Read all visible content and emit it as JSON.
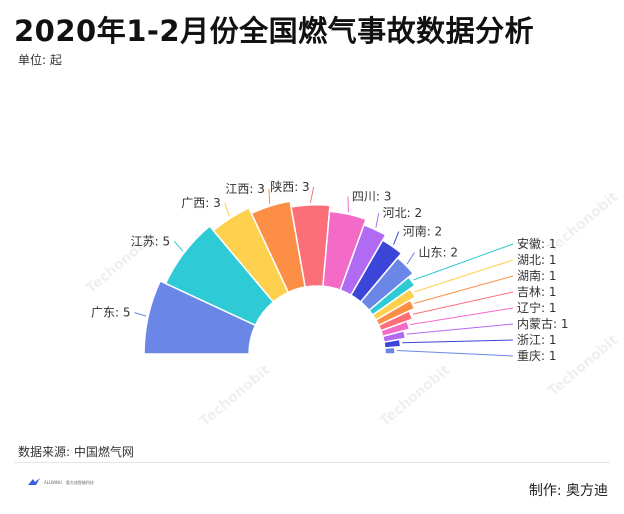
{
  "title": "2020年1-2月份全国燃气事故数据分析",
  "unit": "单位: 起",
  "source": "数据来源: 中国燃气网",
  "maker": "制作:  奥方迪",
  "watermark": "Techonobit",
  "logo": {
    "brand": "ALLWINU",
    "name": "奥方迪智能科技",
    "tagline": "城市智慧能源产业数据运营服务商"
  },
  "colors": {
    "title": "#111111",
    "leader": "#9aa6c8"
  },
  "chart_data": {
    "type": "pie",
    "subtype": "half-donut",
    "label_format": "{name}: {value}",
    "slices": [
      {
        "name": "广东",
        "value": 5,
        "color": "#6A87E8"
      },
      {
        "name": "江苏",
        "value": 5,
        "color": "#2ECAD6"
      },
      {
        "name": "广西",
        "value": 3,
        "color": "#FDD04D"
      },
      {
        "name": "江西",
        "value": 3,
        "color": "#FC8E46"
      },
      {
        "name": "陕西",
        "value": 3,
        "color": "#FC6F78"
      },
      {
        "name": "四川",
        "value": 3,
        "color": "#F46AC7"
      },
      {
        "name": "河北",
        "value": 2,
        "color": "#B16AF2"
      },
      {
        "name": "河南",
        "value": 2,
        "color": "#3B46D9"
      },
      {
        "name": "山东",
        "value": 2,
        "color": "#6A87E8"
      },
      {
        "name": "安徽",
        "value": 1,
        "color": "#2ECAD6"
      },
      {
        "name": "湖北",
        "value": 1,
        "color": "#FDD04D"
      },
      {
        "name": "湖南",
        "value": 1,
        "color": "#FC8E46"
      },
      {
        "name": "吉林",
        "value": 1,
        "color": "#FC6F78"
      },
      {
        "name": "辽宁",
        "value": 1,
        "color": "#F46AC7"
      },
      {
        "name": "内蒙古",
        "value": 1,
        "color": "#B16AF2"
      },
      {
        "name": "浙江",
        "value": 1,
        "color": "#3B46D9"
      },
      {
        "name": "重庆",
        "value": 1,
        "color": "#6A87E8"
      }
    ]
  }
}
